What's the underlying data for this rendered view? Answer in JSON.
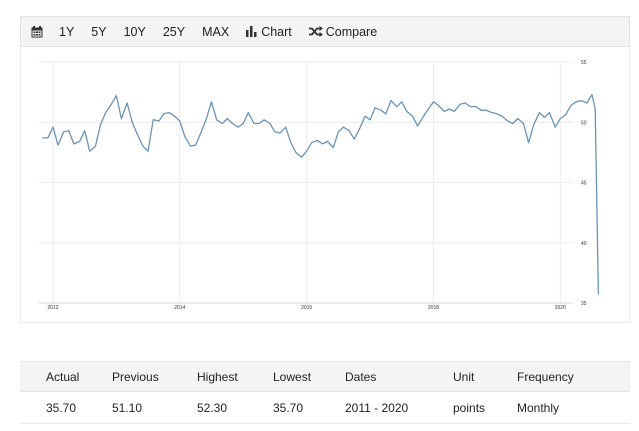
{
  "toolbar": {
    "icon": "calendar-icon",
    "ranges": [
      "1Y",
      "5Y",
      "10Y",
      "25Y",
      "MAX"
    ],
    "chart_label": "Chart",
    "chart_icon": "bar-chart-icon",
    "compare_label": "Compare",
    "compare_icon": "shuffle-icon"
  },
  "chart_data": {
    "type": "line",
    "title": "",
    "xlabel": "",
    "ylabel": "",
    "x_ticks": [
      "2012",
      "2014",
      "2016",
      "2018",
      "2020"
    ],
    "y_ticks": [
      "55",
      "50",
      "45",
      "40",
      "35"
    ],
    "y_axis_side": "right",
    "ylim": [
      35,
      55
    ],
    "xlim": [
      2011.78,
      2020.2
    ],
    "grid": true,
    "line_color": "#6a93b6",
    "series": [
      {
        "values": [
          [
            2011.83,
            48.7
          ],
          [
            2011.92,
            48.7
          ],
          [
            2012.0,
            49.6
          ],
          [
            2012.08,
            48.1
          ],
          [
            2012.17,
            49.2
          ],
          [
            2012.25,
            49.3
          ],
          [
            2012.33,
            48.2
          ],
          [
            2012.42,
            48.4
          ],
          [
            2012.5,
            49.3
          ],
          [
            2012.58,
            47.6
          ],
          [
            2012.67,
            48.0
          ],
          [
            2012.75,
            49.8
          ],
          [
            2012.83,
            50.8
          ],
          [
            2012.92,
            51.5
          ],
          [
            2013.0,
            52.2
          ],
          [
            2013.08,
            50.3
          ],
          [
            2013.17,
            51.6
          ],
          [
            2013.25,
            50.0
          ],
          [
            2013.33,
            49.0
          ],
          [
            2013.42,
            48.0
          ],
          [
            2013.5,
            47.6
          ],
          [
            2013.58,
            50.2
          ],
          [
            2013.67,
            50.1
          ],
          [
            2013.75,
            50.7
          ],
          [
            2013.83,
            50.8
          ],
          [
            2013.92,
            50.5
          ],
          [
            2014.0,
            50.1
          ],
          [
            2014.08,
            48.8
          ],
          [
            2014.17,
            48.0
          ],
          [
            2014.25,
            48.1
          ],
          [
            2014.33,
            49.1
          ],
          [
            2014.42,
            50.3
          ],
          [
            2014.5,
            51.7
          ],
          [
            2014.58,
            50.2
          ],
          [
            2014.67,
            49.9
          ],
          [
            2014.75,
            50.3
          ],
          [
            2014.83,
            49.9
          ],
          [
            2014.92,
            49.6
          ],
          [
            2015.0,
            49.9
          ],
          [
            2015.08,
            50.8
          ],
          [
            2015.17,
            49.9
          ],
          [
            2015.25,
            49.9
          ],
          [
            2015.33,
            50.2
          ],
          [
            2015.42,
            49.9
          ],
          [
            2015.5,
            49.2
          ],
          [
            2015.58,
            49.1
          ],
          [
            2015.67,
            49.6
          ],
          [
            2015.75,
            48.3
          ],
          [
            2015.83,
            47.5
          ],
          [
            2015.92,
            47.1
          ],
          [
            2016.0,
            47.6
          ],
          [
            2016.08,
            48.3
          ],
          [
            2016.17,
            48.5
          ],
          [
            2016.25,
            48.2
          ],
          [
            2016.33,
            48.4
          ],
          [
            2016.42,
            47.9
          ],
          [
            2016.5,
            49.2
          ],
          [
            2016.58,
            49.6
          ],
          [
            2016.67,
            49.3
          ],
          [
            2016.75,
            48.6
          ],
          [
            2016.83,
            49.4
          ],
          [
            2016.92,
            50.5
          ],
          [
            2017.0,
            50.2
          ],
          [
            2017.08,
            51.2
          ],
          [
            2017.17,
            51.0
          ],
          [
            2017.25,
            50.7
          ],
          [
            2017.33,
            51.8
          ],
          [
            2017.42,
            51.3
          ],
          [
            2017.5,
            51.7
          ],
          [
            2017.58,
            50.9
          ],
          [
            2017.67,
            50.5
          ],
          [
            2017.75,
            49.7
          ],
          [
            2017.83,
            50.4
          ],
          [
            2017.92,
            51.1
          ],
          [
            2018.0,
            51.7
          ],
          [
            2018.08,
            51.4
          ],
          [
            2018.17,
            50.9
          ],
          [
            2018.25,
            51.1
          ],
          [
            2018.33,
            50.9
          ],
          [
            2018.42,
            51.5
          ],
          [
            2018.5,
            51.6
          ],
          [
            2018.58,
            51.3
          ],
          [
            2018.67,
            51.3
          ],
          [
            2018.75,
            51.0
          ],
          [
            2018.83,
            51.0
          ],
          [
            2018.92,
            50.8
          ],
          [
            2019.0,
            50.7
          ],
          [
            2019.08,
            50.5
          ],
          [
            2019.17,
            50.1
          ],
          [
            2019.25,
            49.9
          ],
          [
            2019.33,
            50.3
          ],
          [
            2019.42,
            49.9
          ],
          [
            2019.5,
            48.3
          ],
          [
            2019.58,
            49.8
          ],
          [
            2019.67,
            50.8
          ],
          [
            2019.75,
            50.4
          ],
          [
            2019.83,
            50.8
          ],
          [
            2019.92,
            49.6
          ],
          [
            2020.0,
            50.3
          ],
          [
            2020.08,
            50.6
          ],
          [
            2020.17,
            51.4
          ],
          [
            2020.25,
            51.7
          ],
          [
            2020.33,
            51.8
          ],
          [
            2020.42,
            51.6
          ],
          [
            2020.5,
            52.3
          ],
          [
            2020.55,
            51.1
          ],
          [
            2020.6,
            35.7
          ]
        ]
      }
    ]
  },
  "stats": {
    "headers": [
      "Actual",
      "Previous",
      "Highest",
      "Lowest",
      "Dates",
      "Unit",
      "Frequency"
    ],
    "values": [
      "35.70",
      "51.10",
      "52.30",
      "35.70",
      "2011 - 2020",
      "points",
      "Monthly"
    ]
  }
}
